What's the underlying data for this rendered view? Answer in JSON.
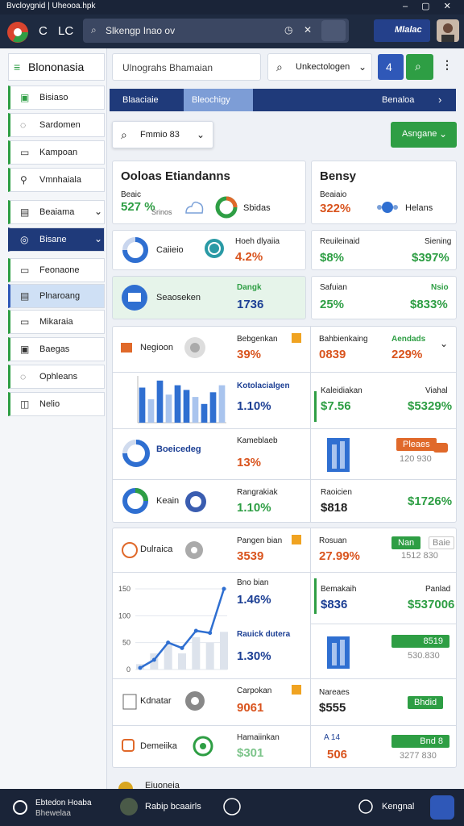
{
  "window_title": "Bvcloygnid | Uheooa.hpk",
  "browser": {
    "nav": [
      "C",
      "LC"
    ],
    "search": "Slkengp Inao ov",
    "badge": "Mlalac"
  },
  "sidebar": {
    "title": "Blononasia",
    "items": [
      "Bisiaso",
      "Sardomen",
      "Kampoan",
      "Vmnhaiala",
      "Beaiama",
      "Bisane",
      "Feonaone",
      "Plnaroang",
      "Mikaraia",
      "Baegas",
      "Ophleans",
      "Nelio"
    ]
  },
  "toolbar": {
    "search": "Ulnograhs Bhamaian",
    "select": "Unkectologen",
    "button": "4"
  },
  "tabs": [
    "Blaaciaie",
    "Bleochigy",
    "Benaloa"
  ],
  "filter": "Fmmio 83",
  "action": "Asngane",
  "cards": [
    {
      "title": "Ooloas Etiandanns",
      "label": "Beaic",
      "value": "527 %",
      "note": "Srinos",
      "legend": "Sbidas"
    },
    {
      "title": "Bensy",
      "label": "Beaiaio",
      "value": "322%",
      "legend": "Helans"
    },
    {
      "label": "Caiieio",
      "title": "Hoeh dlyaiia",
      "value": "4.2%"
    },
    {
      "title": "Reuileinaid",
      "side": "Siening",
      "value": "$8%",
      "side_value": "$397%"
    },
    {
      "label": "Seaoseken",
      "title": "Dangk",
      "value": "1736"
    },
    {
      "title": "Safuian",
      "side": "Nsio",
      "value": "25%",
      "side_value": "$833%"
    },
    {
      "label": "Negioon",
      "title": "Bebgenkan",
      "value": "39%"
    },
    {
      "title": "Bahbienkaing",
      "side": "Aendads",
      "value": "0839",
      "side_value": "229%"
    },
    {
      "title": "Kotolacialgen",
      "value": "1.10%"
    },
    {
      "title": "Kaleidiakan",
      "side": "Viahal",
      "value": "$7.56",
      "side_value": "$5329%"
    },
    {
      "label": "Boeicedeg",
      "title": "Kameblaeb",
      "value": "13%"
    },
    {
      "badge": "Pleaes",
      "side_value": "120 930"
    },
    {
      "label": "Keain",
      "title": "Rangrakiak",
      "value": "1.10%"
    },
    {
      "title": "Raoicien",
      "value": "$818",
      "side_value": "$1726%"
    },
    {
      "label": "Dulraica",
      "title": "Pangen bian",
      "value": "3539"
    },
    {
      "title": "Rosuan",
      "value": "27.99%",
      "badge": "Nan",
      "badge2": "Baie",
      "side_value": "1512 830"
    },
    {
      "title": "Bno bian",
      "value": "1.46%"
    },
    {
      "title": "Bemakaih",
      "side": "Panlad",
      "value": "$836",
      "side_value": "$537006"
    },
    {
      "title": "Rauick dutera",
      "value": "1.30%"
    },
    {
      "badge": "8519",
      "side_value": "530.830"
    },
    {
      "label": "Kdnatar",
      "title": "Carpokan",
      "value": "9061"
    },
    {
      "title": "Nareaes",
      "value": "$555",
      "badge": "Bhdid"
    },
    {
      "label": "Demeiika",
      "title": "Hamaiinkan",
      "value": "$301"
    },
    {
      "title": "A 14",
      "value": "506",
      "badge": "Bnd 8",
      "side_value": "3277 830"
    }
  ],
  "bar_chart": {
    "type": "bar",
    "values": [
      7.5,
      5,
      9,
      6,
      8,
      7,
      5.5,
      4,
      6.5,
      8
    ],
    "colors": [
      "#2f6fd1",
      "#a9c4ee",
      "#2f6fd1",
      "#a9c4ee",
      "#2f6fd1",
      "#2f6fd1",
      "#a9c4ee",
      "#2f6fd1",
      "#2f6fd1",
      "#a9c4ee"
    ],
    "ylim": [
      0,
      10
    ]
  },
  "line_chart": {
    "type": "line",
    "values": [
      3,
      18,
      50,
      40,
      72,
      68,
      150
    ],
    "bars": [
      10,
      30,
      45,
      30,
      60,
      50,
      70
    ],
    "color": "#2f6fd1",
    "ylim": [
      0,
      150
    ],
    "yticks": [
      0,
      50,
      100,
      150
    ]
  },
  "more": "Eiuoneia",
  "footer": {
    "left": "Ebtedon Hoaba",
    "left_sub": "Bhewelaa",
    "center": "Rabip bcaairls",
    "right": "Kengnal"
  }
}
